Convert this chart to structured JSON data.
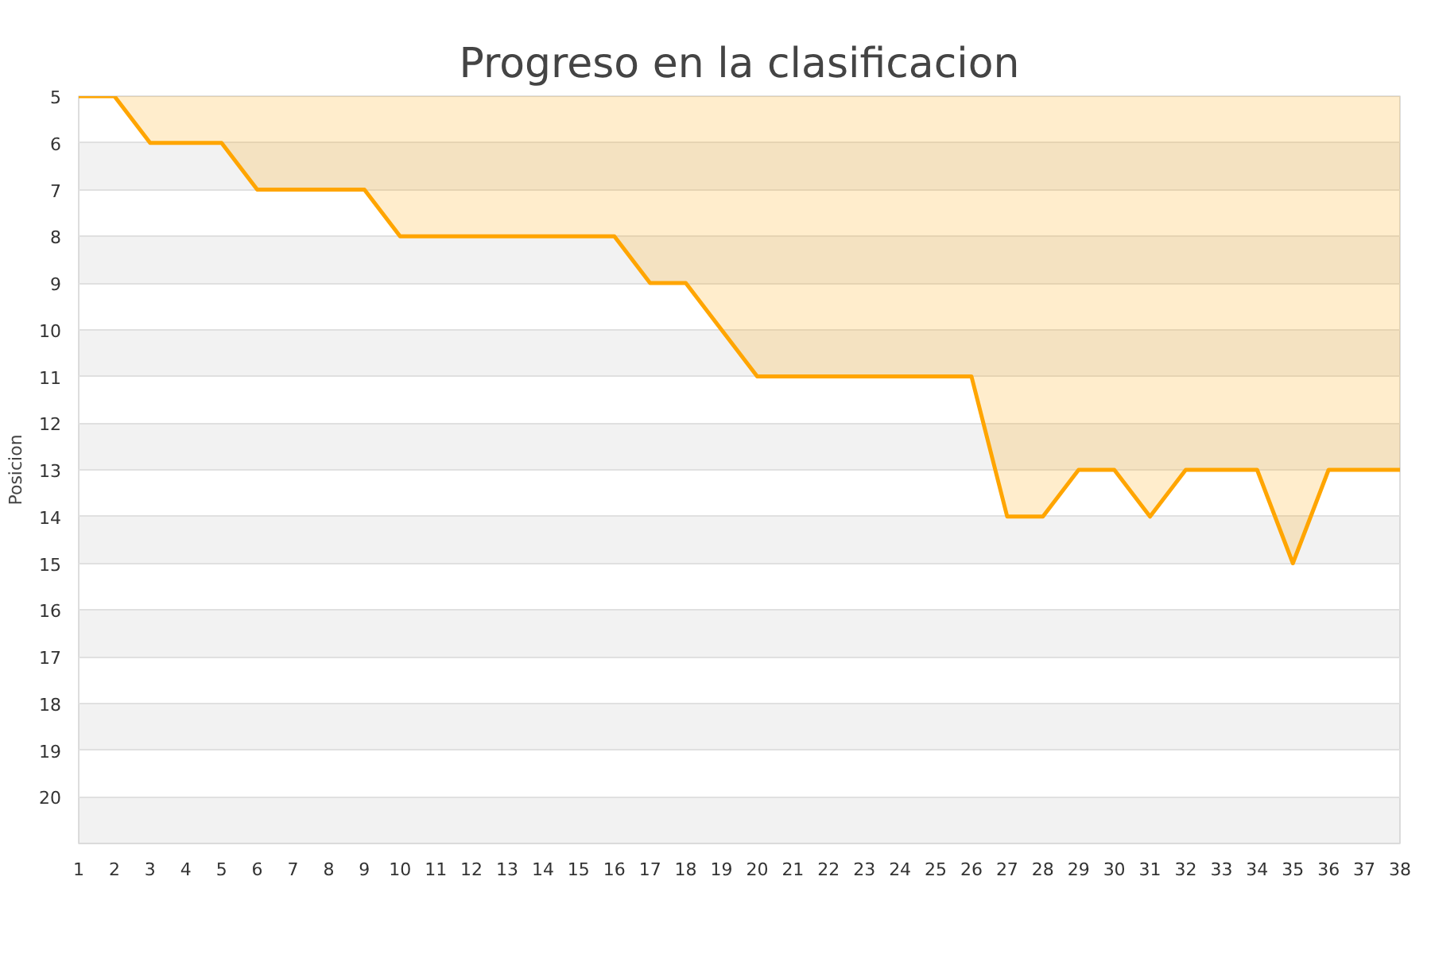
{
  "chart_data": {
    "type": "area",
    "title": "Progreso en la clasificacion",
    "ylabel": "Posicion",
    "x": [
      1,
      2,
      3,
      4,
      5,
      6,
      7,
      8,
      9,
      10,
      11,
      12,
      13,
      14,
      15,
      16,
      17,
      18,
      19,
      20,
      21,
      22,
      23,
      24,
      25,
      26,
      27,
      28,
      29,
      30,
      31,
      32,
      33,
      34,
      35,
      36,
      37,
      38
    ],
    "series": [
      {
        "color": "#ffa500",
        "values": [
          5,
          5,
          6,
          6,
          6,
          7,
          7,
          7,
          7,
          8,
          8,
          8,
          8,
          8,
          8,
          8,
          9,
          9,
          10,
          11,
          11,
          11,
          11,
          11,
          11,
          11,
          14,
          14,
          13,
          13,
          14,
          13,
          13,
          13,
          15,
          13,
          13,
          13
        ]
      }
    ],
    "xlim": [
      1,
      38
    ],
    "xticks": [
      1,
      2,
      3,
      4,
      5,
      6,
      7,
      8,
      9,
      10,
      11,
      12,
      13,
      14,
      15,
      16,
      17,
      18,
      19,
      20,
      21,
      22,
      23,
      24,
      25,
      26,
      27,
      28,
      29,
      30,
      31,
      32,
      33,
      34,
      35,
      36,
      37,
      38
    ],
    "ylim": [
      21,
      5
    ],
    "yticks": [
      5,
      6,
      7,
      8,
      9,
      10,
      11,
      12,
      13,
      14,
      15,
      16,
      17,
      18,
      19,
      20
    ],
    "grid": "y",
    "marker": "none",
    "line_style": "solid"
  }
}
